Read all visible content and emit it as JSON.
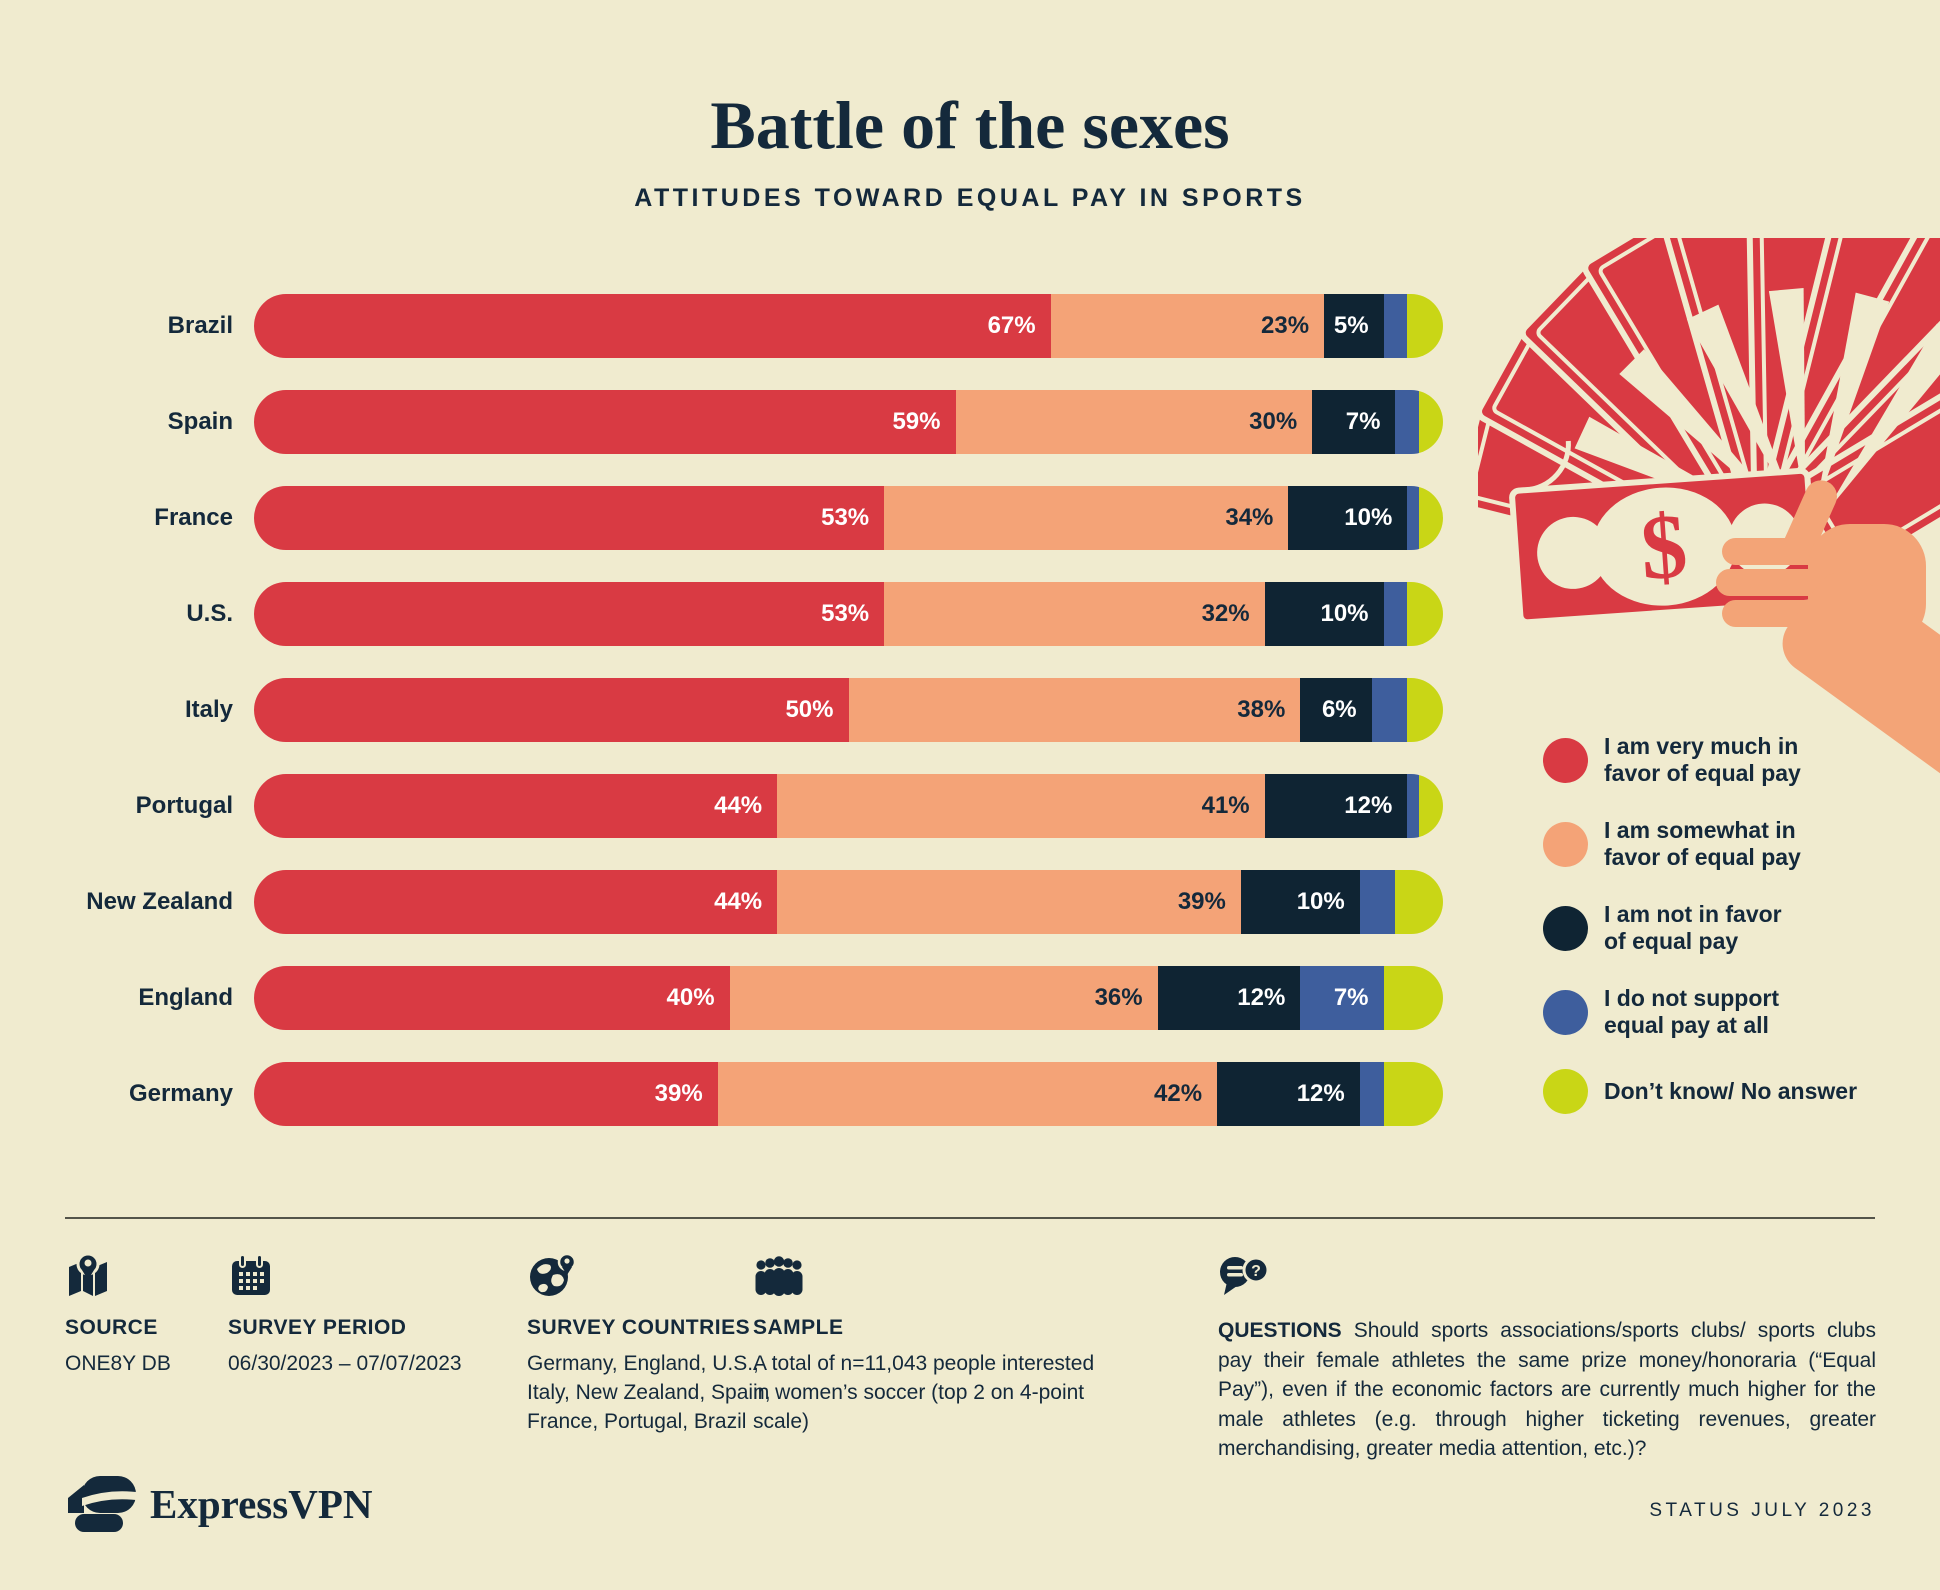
{
  "header": {
    "title": "Battle of the sexes",
    "subtitle": "ATTITUDES TOWARD EQUAL PAY IN SPORTS"
  },
  "palette": {
    "background": "#f0ebcf",
    "text_navy": "#14293b",
    "red": "#d93a43",
    "salmon": "#f4a377",
    "navy": "#0f2433",
    "blue": "#3e5e9d",
    "lime": "#c9d616",
    "skin": "#f3a477"
  },
  "chart_data": {
    "type": "bar",
    "stacked": true,
    "orientation": "horizontal",
    "unit": "%",
    "title": "Battle of the sexes",
    "subtitle": "ATTITUDES TOWARD EQUAL PAY IN SPORTS",
    "categories": [
      "Brazil",
      "Spain",
      "France",
      "U.S.",
      "Italy",
      "Portugal",
      "New Zealand",
      "England",
      "Germany"
    ],
    "series": [
      {
        "name": "I am very much in favor of equal pay",
        "color": "#d93a43",
        "label_color": "#ffffff",
        "labels_shown": true,
        "values": [
          67,
          59,
          53,
          53,
          50,
          44,
          44,
          40,
          39
        ]
      },
      {
        "name": "I am somewhat in favor of equal pay",
        "color": "#f4a377",
        "label_color": "#14293b",
        "labels_shown": true,
        "values": [
          23,
          30,
          34,
          32,
          38,
          41,
          39,
          36,
          42
        ]
      },
      {
        "name": "I am not in favor of equal pay",
        "color": "#0f2433",
        "label_color": "#ffffff",
        "labels_shown": true,
        "values": [
          5,
          7,
          10,
          10,
          6,
          12,
          10,
          12,
          12
        ]
      },
      {
        "name": "I do not support equal pay at all",
        "color": "#3e5e9d",
        "label_color": "#ffffff",
        "labels_shown": false,
        "labeled_rows": [
          "England"
        ],
        "values": [
          2,
          2,
          1,
          2,
          3,
          1,
          3,
          7,
          2
        ]
      },
      {
        "name": "Don't know/ No answer",
        "color": "#c9d616",
        "label_color": "#14293b",
        "labels_shown": false,
        "values": [
          3,
          2,
          2,
          3,
          3,
          2,
          4,
          5,
          5
        ]
      }
    ],
    "xlim": [
      0,
      100
    ],
    "grid": false,
    "legend_position": "right",
    "note": "Values for the two right-most segments of each bar are unlabeled in the graphic and estimated from pixel widths; rows sum to 100%."
  },
  "legend": {
    "items": [
      {
        "label": "I am very much in\nfavor of equal pay",
        "color": "#d93a43"
      },
      {
        "label": "I am somewhat in\nfavor of equal pay",
        "color": "#f4a377"
      },
      {
        "label": "I am not in favor\nof equal pay",
        "color": "#0f2433"
      },
      {
        "label": "I do not support\nequal pay at all",
        "color": "#3e5e9d"
      },
      {
        "label": "Don’t know/ No answer",
        "color": "#c9d616"
      }
    ]
  },
  "illustration": {
    "name": "hand-holding-fan-of-money",
    "dollar_sign": "$"
  },
  "footer": {
    "source": {
      "icon": "map-pin-icon",
      "heading": "SOURCE",
      "value": "ONE8Y DB"
    },
    "survey_period": {
      "icon": "calendar-icon",
      "heading": "SURVEY PERIOD",
      "value": "06/30/2023 – 07/07/2023"
    },
    "survey_countries": {
      "icon": "globe-pin-icon",
      "heading": "SURVEY COUNTRIES",
      "value": "Germany, England, U.S.,\nItaly, New Zealand, Spain,\nFrance, Portugal, Brazil"
    },
    "sample": {
      "icon": "people-group-icon",
      "heading": "SAMPLE",
      "value": "A total of n=11,043 people interested\nin women’s soccer (top 2 on 4-point\nscale)"
    },
    "questions": {
      "icon": "chat-question-icon",
      "heading": "QUESTIONS",
      "text": "Should sports associations/sports clubs/ sports clubs pay their female athletes the same prize money/honoraria (“Equal Pay”), even if the economic factors are currently much higher for the male athletes (e.g. through higher ticketing revenues, greater merchandising, greater media attention, etc.)?"
    },
    "brand": "ExpressVPN",
    "status": "STATUS JULY 2023"
  }
}
